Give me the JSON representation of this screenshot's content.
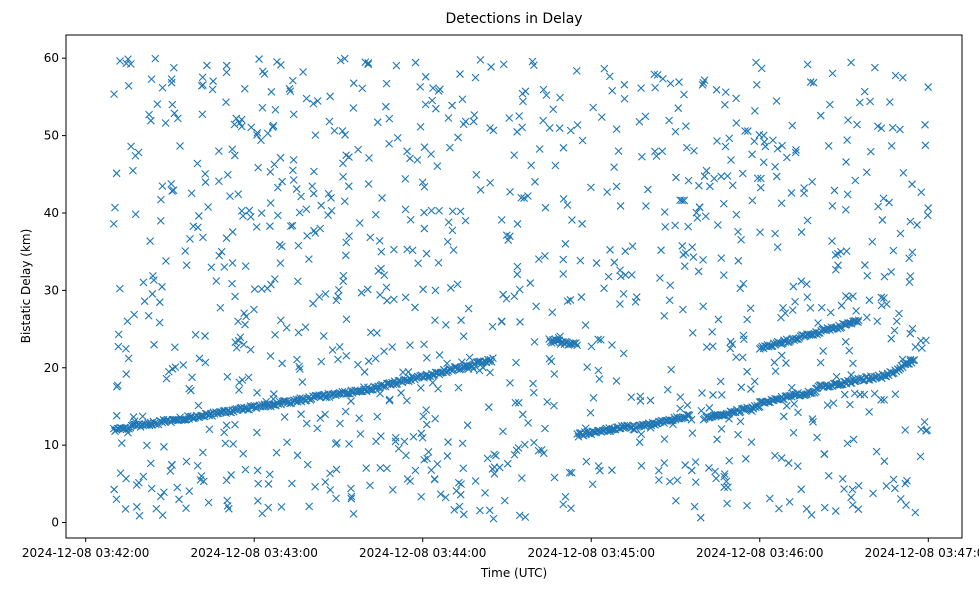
{
  "chart_data": {
    "type": "scatter",
    "title": "Detections in Delay",
    "xlabel": "Time (UTC)",
    "ylabel": "Bistatic Delay (km)",
    "x_type": "time",
    "xlim": [
      "2024-12-08 03:41:53",
      "2024-12-08 03:47:12"
    ],
    "ylim": [
      -2,
      63
    ],
    "x_ticks": [
      "2024-12-08 03:42:00",
      "2024-12-08 03:43:00",
      "2024-12-08 03:44:00",
      "2024-12-08 03:45:00",
      "2024-12-08 03:46:00",
      "2024-12-08 03:47:00"
    ],
    "y_ticks": [
      0,
      10,
      20,
      30,
      40,
      50,
      60
    ],
    "grid": false,
    "legend": "none",
    "marker": "x",
    "color": "#1f77b4",
    "series": [
      {
        "tracks": [
          {
            "from": [
              "2024-12-08 03:42:10",
              12.0
            ],
            "to": [
              "2024-12-08 03:43:40",
              17.2
            ]
          },
          {
            "from": [
              "2024-12-08 03:43:40",
              17.2
            ],
            "to": [
              "2024-12-08 03:44:25",
              21.0
            ]
          },
          {
            "from": [
              "2024-12-08 03:44:45",
              23.5
            ],
            "to": [
              "2024-12-08 03:44:55",
              23.0
            ]
          },
          {
            "from": [
              "2024-12-08 03:44:55",
              11.3
            ],
            "to": [
              "2024-12-08 03:45:15",
              12.5
            ]
          },
          {
            "from": [
              "2024-12-08 03:45:15",
              12.2
            ],
            "to": [
              "2024-12-08 03:45:35",
              13.8
            ]
          },
          {
            "from": [
              "2024-12-08 03:45:40",
              13.5
            ],
            "to": [
              "2024-12-08 03:46:00",
              15.0
            ]
          },
          {
            "from": [
              "2024-12-08 03:46:00",
              15.5
            ],
            "to": [
              "2024-12-08 03:46:20",
              17.0
            ]
          },
          {
            "from": [
              "2024-12-08 03:46:00",
              22.5
            ],
            "to": [
              "2024-12-08 03:46:35",
              26.0
            ]
          },
          {
            "from": [
              "2024-12-08 03:46:20",
              17.5
            ],
            "to": [
              "2024-12-08 03:46:45",
              19.0
            ]
          },
          {
            "from": [
              "2024-12-08 03:46:45",
              19.0
            ],
            "to": [
              "2024-12-08 03:46:55",
              21.0
            ]
          }
        ],
        "noise": {
          "count": 1050,
          "x_range": [
            "2024-12-08 03:42:10",
            "2024-12-08 03:47:00"
          ],
          "y_range": [
            0.5,
            60
          ]
        }
      }
    ]
  }
}
